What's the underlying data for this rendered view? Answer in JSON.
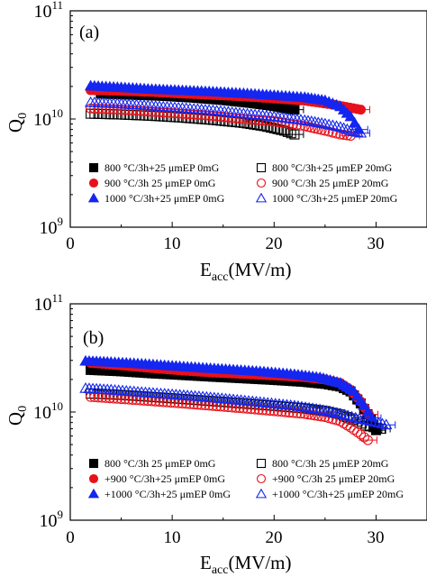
{
  "colors": {
    "black": "#000000",
    "red": "#e8111a",
    "blue": "#1426f0"
  },
  "chart_data": [
    {
      "type": "scatter",
      "panel_label": "(a)",
      "xlabel_main": "E",
      "xlabel_sub": "acc",
      "xlabel_unit": "(MV/m)",
      "ylabel_main": "Q",
      "ylabel_sub": "0",
      "y_scale": "log",
      "xlim": [
        0,
        35
      ],
      "ylim": [
        1000000000.0,
        100000000000.0
      ],
      "x_ticks": [
        0,
        10,
        20,
        30
      ],
      "y_ticks": [
        {
          "value": 1000000000.0,
          "base": "10",
          "exp": "9"
        },
        {
          "value": 10000000000.0,
          "base": "10",
          "exp": "10"
        },
        {
          "value": 100000000000.0,
          "base": "10",
          "exp": "11"
        }
      ],
      "grid": false,
      "legend_position": "lower-center",
      "series": [
        {
          "name": "800 °C/3h+25 μmEP  0mG",
          "marker": "square",
          "filled": true,
          "color": "#000000",
          "points": [
            [
              3,
              17200000000.0
            ],
            [
              6,
              16800000000.0
            ],
            [
              9,
              16400000000.0
            ],
            [
              12,
              15800000000.0
            ],
            [
              15,
              15000000000.0
            ],
            [
              18,
              14000000000.0
            ],
            [
              20,
              13200000000.0
            ],
            [
              22,
              12200000000.0
            ]
          ]
        },
        {
          "name": "900 °C/3h  25 μmEP  0mG",
          "marker": "circle",
          "filled": true,
          "color": "#e8111a",
          "points": [
            [
              2,
              18500000000.0
            ],
            [
              5,
              18200000000.0
            ],
            [
              8,
              17800000000.0
            ],
            [
              11,
              17200000000.0
            ],
            [
              14,
              16700000000.0
            ],
            [
              17,
              16200000000.0
            ],
            [
              20,
              15500000000.0
            ],
            [
              23,
              14800000000.0
            ],
            [
              26,
              13500000000.0
            ],
            [
              28.5,
              12200000000.0
            ]
          ]
        },
        {
          "name": "1000 °C/3h+25 μmEP  0mG",
          "marker": "triangle",
          "filled": true,
          "color": "#1426f0",
          "points": [
            [
              2,
              20200000000.0
            ],
            [
              5,
              19500000000.0
            ],
            [
              8,
              18800000000.0
            ],
            [
              11,
              18300000000.0
            ],
            [
              14,
              17800000000.0
            ],
            [
              17,
              17200000000.0
            ],
            [
              20,
              16500000000.0
            ],
            [
              23,
              15800000000.0
            ],
            [
              25,
              14800000000.0
            ],
            [
              26.5,
              13000000000.0
            ],
            [
              27.5,
              10500000000.0
            ],
            [
              28.3,
              8000000000.0
            ]
          ]
        },
        {
          "name": "800 °C/3h+25 μmEP  20mG",
          "marker": "square",
          "filled": false,
          "color": "#000000",
          "points": [
            [
              2,
              11200000000.0
            ],
            [
              5,
              11000000000.0
            ],
            [
              8,
              10700000000.0
            ],
            [
              11,
              10300000000.0
            ],
            [
              14,
              9800000000.0
            ],
            [
              17,
              9200000000.0
            ],
            [
              19,
              8600000000.0
            ],
            [
              21,
              7800000000.0
            ],
            [
              22,
              7200000000.0
            ]
          ]
        },
        {
          "name": "900 °C/3h  25 μmEP  20mG",
          "marker": "circle",
          "filled": false,
          "color": "#e8111a",
          "points": [
            [
              2,
              12500000000.0
            ],
            [
              5,
              12200000000.0
            ],
            [
              8,
              11700000000.0
            ],
            [
              11,
              11200000000.0
            ],
            [
              14,
              10700000000.0
            ],
            [
              17,
              10000000000.0
            ],
            [
              20,
              9500000000.0
            ],
            [
              23,
              8600000000.0
            ],
            [
              25,
              7800000000.0
            ],
            [
              26.5,
              7200000000.0
            ],
            [
              27.5,
              7000000000.0
            ]
          ]
        },
        {
          "name": "1000 °C/3h+25 μmEP  20mG",
          "marker": "triangle",
          "filled": false,
          "color": "#1426f0",
          "points": [
            [
              2,
              14200000000.0
            ],
            [
              5,
              13800000000.0
            ],
            [
              8,
              13200000000.0
            ],
            [
              11,
              12600000000.0
            ],
            [
              14,
              12000000000.0
            ],
            [
              17,
              11200000000.0
            ],
            [
              20,
              10500000000.0
            ],
            [
              23,
              9700000000.0
            ],
            [
              25,
              9000000000.0
            ],
            [
              26.5,
              8400000000.0
            ],
            [
              27.5,
              7800000000.0
            ],
            [
              28.5,
              7400000000.0
            ]
          ]
        }
      ]
    },
    {
      "type": "scatter",
      "panel_label": "(b)",
      "xlabel_main": "E",
      "xlabel_sub": "acc",
      "xlabel_unit": "(MV/m)",
      "ylabel_main": "Q",
      "ylabel_sub": "0",
      "y_scale": "log",
      "xlim": [
        0,
        35
      ],
      "ylim": [
        1000000000.0,
        100000000000.0
      ],
      "x_ticks": [
        0,
        10,
        20,
        30
      ],
      "y_ticks": [
        {
          "value": 1000000000.0,
          "base": "10",
          "exp": "9"
        },
        {
          "value": 10000000000.0,
          "base": "10",
          "exp": "10"
        },
        {
          "value": 100000000000.0,
          "base": "10",
          "exp": "11"
        }
      ],
      "grid": false,
      "legend_position": "lower-center",
      "series": [
        {
          "name": "800 °C/3h  25 μmEP  0mG",
          "marker": "square",
          "filled": true,
          "color": "#000000",
          "points": [
            [
              2,
              24500000000.0
            ],
            [
              5,
              23800000000.0
            ],
            [
              8,
              22800000000.0
            ],
            [
              11,
              22000000000.0
            ],
            [
              14,
              21200000000.0
            ],
            [
              17,
              20500000000.0
            ],
            [
              20,
              19800000000.0
            ],
            [
              23,
              19000000000.0
            ],
            [
              25,
              18200000000.0
            ],
            [
              26.5,
              17200000000.0
            ],
            [
              27.5,
              15500000000.0
            ],
            [
              28.5,
              12000000000.0
            ],
            [
              29.5,
              8500000000.0
            ],
            [
              30,
              6800000000.0
            ]
          ]
        },
        {
          "name": "+900 °C/3h+25 μmEP  0mG",
          "marker": "circle",
          "filled": true,
          "color": "#e8111a",
          "points": [
            [
              2,
              28500000000.0
            ],
            [
              5,
              27000000000.0
            ],
            [
              8,
              25500000000.0
            ],
            [
              11,
              24200000000.0
            ],
            [
              14,
              23200000000.0
            ],
            [
              17,
              22500000000.0
            ],
            [
              20,
              21800000000.0
            ],
            [
              23,
              21000000000.0
            ],
            [
              25,
              20000000000.0
            ],
            [
              26.5,
              18500000000.0
            ],
            [
              27.5,
              16000000000.0
            ],
            [
              28.5,
              12500000000.0
            ],
            [
              29.3,
              9500000000.0
            ]
          ]
        },
        {
          "name": "+1000 °C/3h+25 μmEP  0mG",
          "marker": "triangle",
          "filled": true,
          "color": "#1426f0",
          "points": [
            [
              1.5,
              29500000000.0
            ],
            [
              4,
              28800000000.0
            ],
            [
              7,
              27800000000.0
            ],
            [
              10,
              26600000000.0
            ],
            [
              13,
              25500000000.0
            ],
            [
              16,
              24500000000.0
            ],
            [
              19,
              23500000000.0
            ],
            [
              22,
              22200000000.0
            ],
            [
              24.5,
              20800000000.0
            ],
            [
              26.5,
              18500000000.0
            ],
            [
              27.8,
              15500000000.0
            ],
            [
              28.8,
              11500000000.0
            ],
            [
              29.6,
              8800000000.0
            ]
          ]
        },
        {
          "name": "800 °C/3h  25 μmEP  20mG",
          "marker": "square",
          "filled": false,
          "color": "#000000",
          "points": [
            [
              2,
              14800000000.0
            ],
            [
              5,
              14400000000.0
            ],
            [
              8,
              13800000000.0
            ],
            [
              11,
              13200000000.0
            ],
            [
              14,
              12600000000.0
            ],
            [
              17,
              12000000000.0
            ],
            [
              20,
              11400000000.0
            ],
            [
              23,
              10800000000.0
            ],
            [
              25,
              10200000000.0
            ],
            [
              26.5,
              9500000000.0
            ],
            [
              27.8,
              8500000000.0
            ],
            [
              29,
              7500000000.0
            ],
            [
              30.5,
              7000000000.0
            ]
          ]
        },
        {
          "name": "+900 °C/3h  25 μmEP  20mG",
          "marker": "circle",
          "filled": false,
          "color": "#e8111a",
          "points": [
            [
              2,
              13800000000.0
            ],
            [
              5,
              13200000000.0
            ],
            [
              8,
              12600000000.0
            ],
            [
              11,
              12000000000.0
            ],
            [
              14,
              11400000000.0
            ],
            [
              17,
              10800000000.0
            ],
            [
              20,
              10200000000.0
            ],
            [
              23,
              9600000000.0
            ],
            [
              25,
              9000000000.0
            ],
            [
              26.5,
              8200000000.0
            ],
            [
              27.5,
              7200000000.0
            ],
            [
              28.5,
              6200000000.0
            ],
            [
              29.2,
              5500000000.0
            ]
          ]
        },
        {
          "name": "+1000 °C/3h+25 μmEP  20mG",
          "marker": "triangle",
          "filled": false,
          "color": "#1426f0",
          "points": [
            [
              1.5,
              16500000000.0
            ],
            [
              4,
              16000000000.0
            ],
            [
              7,
              15200000000.0
            ],
            [
              10,
              14500000000.0
            ],
            [
              13,
              13800000000.0
            ],
            [
              16,
              13000000000.0
            ],
            [
              19,
              12200000000.0
            ],
            [
              22,
              11400000000.0
            ],
            [
              24.5,
              10500000000.0
            ],
            [
              26.5,
              9600000000.0
            ],
            [
              28,
              8800000000.0
            ],
            [
              29.5,
              8200000000.0
            ],
            [
              31,
              7600000000.0
            ]
          ]
        }
      ]
    }
  ]
}
